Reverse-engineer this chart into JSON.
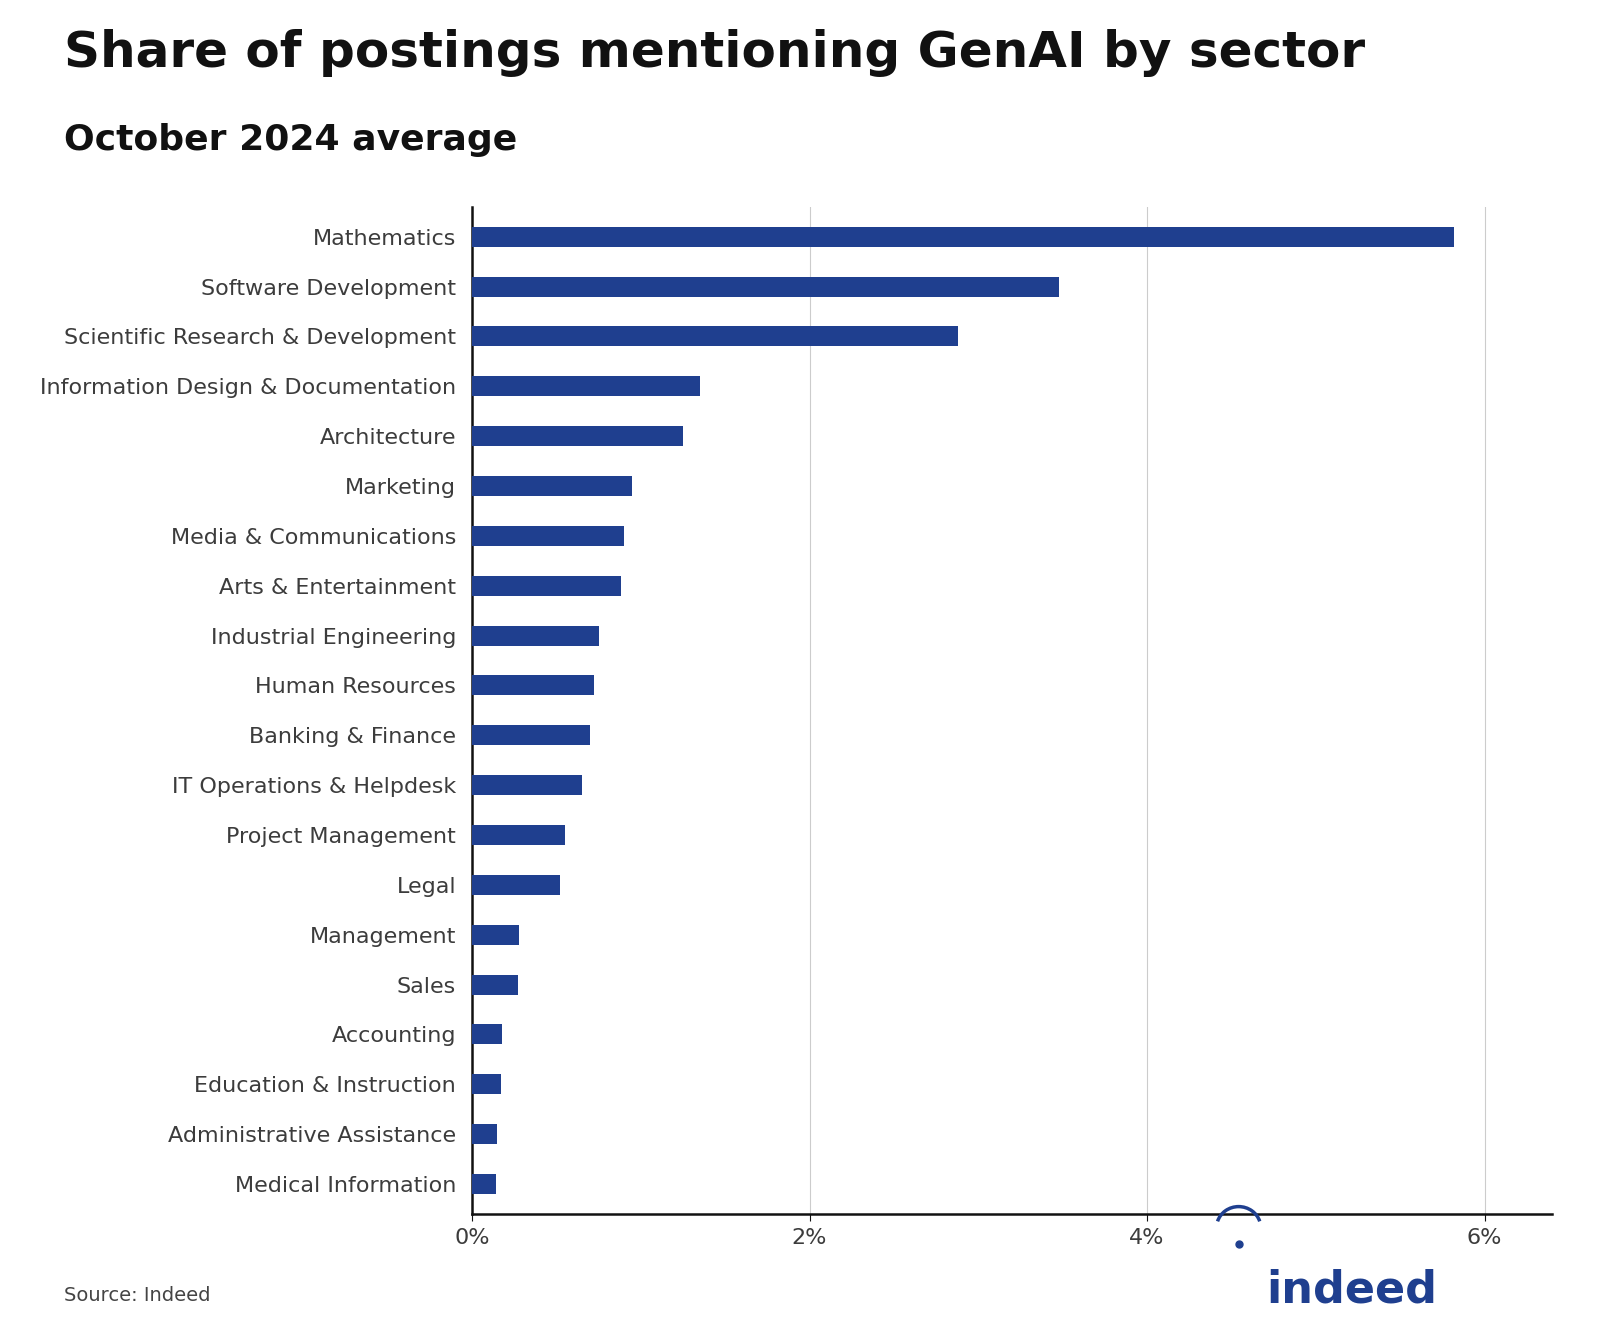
{
  "title": "Share of postings mentioning GenAI by sector",
  "subtitle": "October 2024 average",
  "source": "Source: Indeed",
  "bar_color": "#1F3F8F",
  "background_color": "#FFFFFF",
  "categories": [
    "Mathematics",
    "Software Development",
    "Scientific Research & Development",
    "Information Design & Documentation",
    "Architecture",
    "Marketing",
    "Media & Communications",
    "Arts & Entertainment",
    "Industrial Engineering",
    "Human Resources",
    "Banking & Finance",
    "IT Operations & Helpdesk",
    "Project Management",
    "Legal",
    "Management",
    "Sales",
    "Accounting",
    "Education & Instruction",
    "Administrative Assistance",
    "Medical Information"
  ],
  "values": [
    5.82,
    3.48,
    2.88,
    1.35,
    1.25,
    0.95,
    0.9,
    0.88,
    0.75,
    0.72,
    0.7,
    0.65,
    0.55,
    0.52,
    0.28,
    0.27,
    0.18,
    0.17,
    0.15,
    0.14
  ],
  "xlim_max": 6.4,
  "xticks": [
    0,
    2,
    4,
    6
  ],
  "xticklabels": [
    "0%",
    "2%",
    "4%",
    "6%"
  ],
  "grid_color": "#CCCCCC",
  "title_fontsize": 36,
  "subtitle_fontsize": 26,
  "label_fontsize": 16,
  "tick_fontsize": 16,
  "source_fontsize": 14,
  "bar_height": 0.4,
  "label_color": "#3C3C3C",
  "tick_color": "#3C3C3C",
  "spine_color": "#111111",
  "indeed_color": "#1F3F8F"
}
